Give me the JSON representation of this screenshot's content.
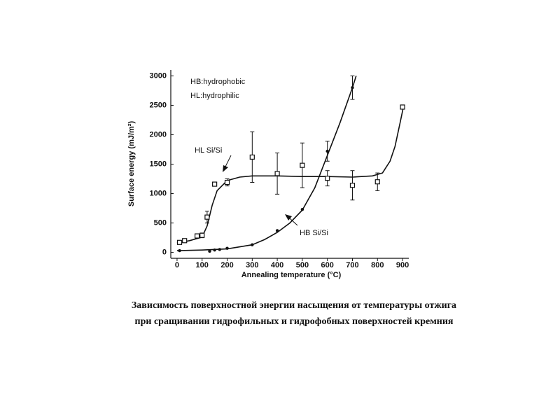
{
  "chart_data": {
    "type": "scatter",
    "x_label": "Annealing temperature (°C)",
    "y_label": "Surface energy (mJ/m²)",
    "annotations": [
      "HB:hydrophobic",
      "HL:hydrophilic"
    ],
    "caption": [
      "Зависимость поверхностной энергии насыщения от температуры отжига",
      "при сращивании гидрофильных и гидрофобных поверхностей кремния"
    ],
    "xlim": [
      -25,
      925
    ],
    "xticks": [
      0,
      100,
      200,
      300,
      400,
      500,
      600,
      700,
      800,
      900
    ],
    "ylim": [
      -100,
      3100
    ],
    "yticks": [
      0,
      500,
      1000,
      1500,
      2000,
      2500,
      3000
    ],
    "color": "#111111",
    "series": [
      {
        "name": "HL Si/Si",
        "marker": "square",
        "x": [
          10,
          30,
          80,
          100,
          120,
          150,
          200,
          300,
          400,
          500,
          600,
          700,
          800,
          900
        ],
        "values": [
          170,
          200,
          280,
          290,
          600,
          1160,
          1190,
          1620,
          1340,
          1480,
          1260,
          1140,
          1200,
          2470
        ],
        "errors": [
          null,
          null,
          null,
          40,
          100,
          null,
          60,
          430,
          350,
          380,
          130,
          250,
          150,
          null
        ],
        "fit": {
          "x": [
            0,
            50,
            100,
            120,
            140,
            160,
            200,
            250,
            300,
            400,
            500,
            600,
            700,
            780,
            820,
            850,
            870,
            890,
            905
          ],
          "values": [
            160,
            200,
            260,
            450,
            800,
            1050,
            1220,
            1280,
            1300,
            1300,
            1290,
            1290,
            1280,
            1300,
            1350,
            1550,
            1800,
            2200,
            2500
          ]
        }
      },
      {
        "name": "HB Si/Si",
        "marker": "dot",
        "x": [
          10,
          130,
          150,
          170,
          200,
          300,
          400,
          500,
          600,
          700
        ],
        "values": [
          30,
          20,
          40,
          50,
          70,
          130,
          370,
          730,
          1720,
          2800
        ],
        "errors": [
          null,
          null,
          null,
          null,
          null,
          null,
          null,
          null,
          170,
          200
        ],
        "fit": {
          "x": [
            0,
            100,
            200,
            300,
            350,
            400,
            450,
            500,
            550,
            600,
            650,
            700,
            715
          ],
          "values": [
            30,
            40,
            60,
            130,
            220,
            340,
            500,
            720,
            1100,
            1650,
            2200,
            2800,
            3000
          ]
        }
      }
    ]
  }
}
